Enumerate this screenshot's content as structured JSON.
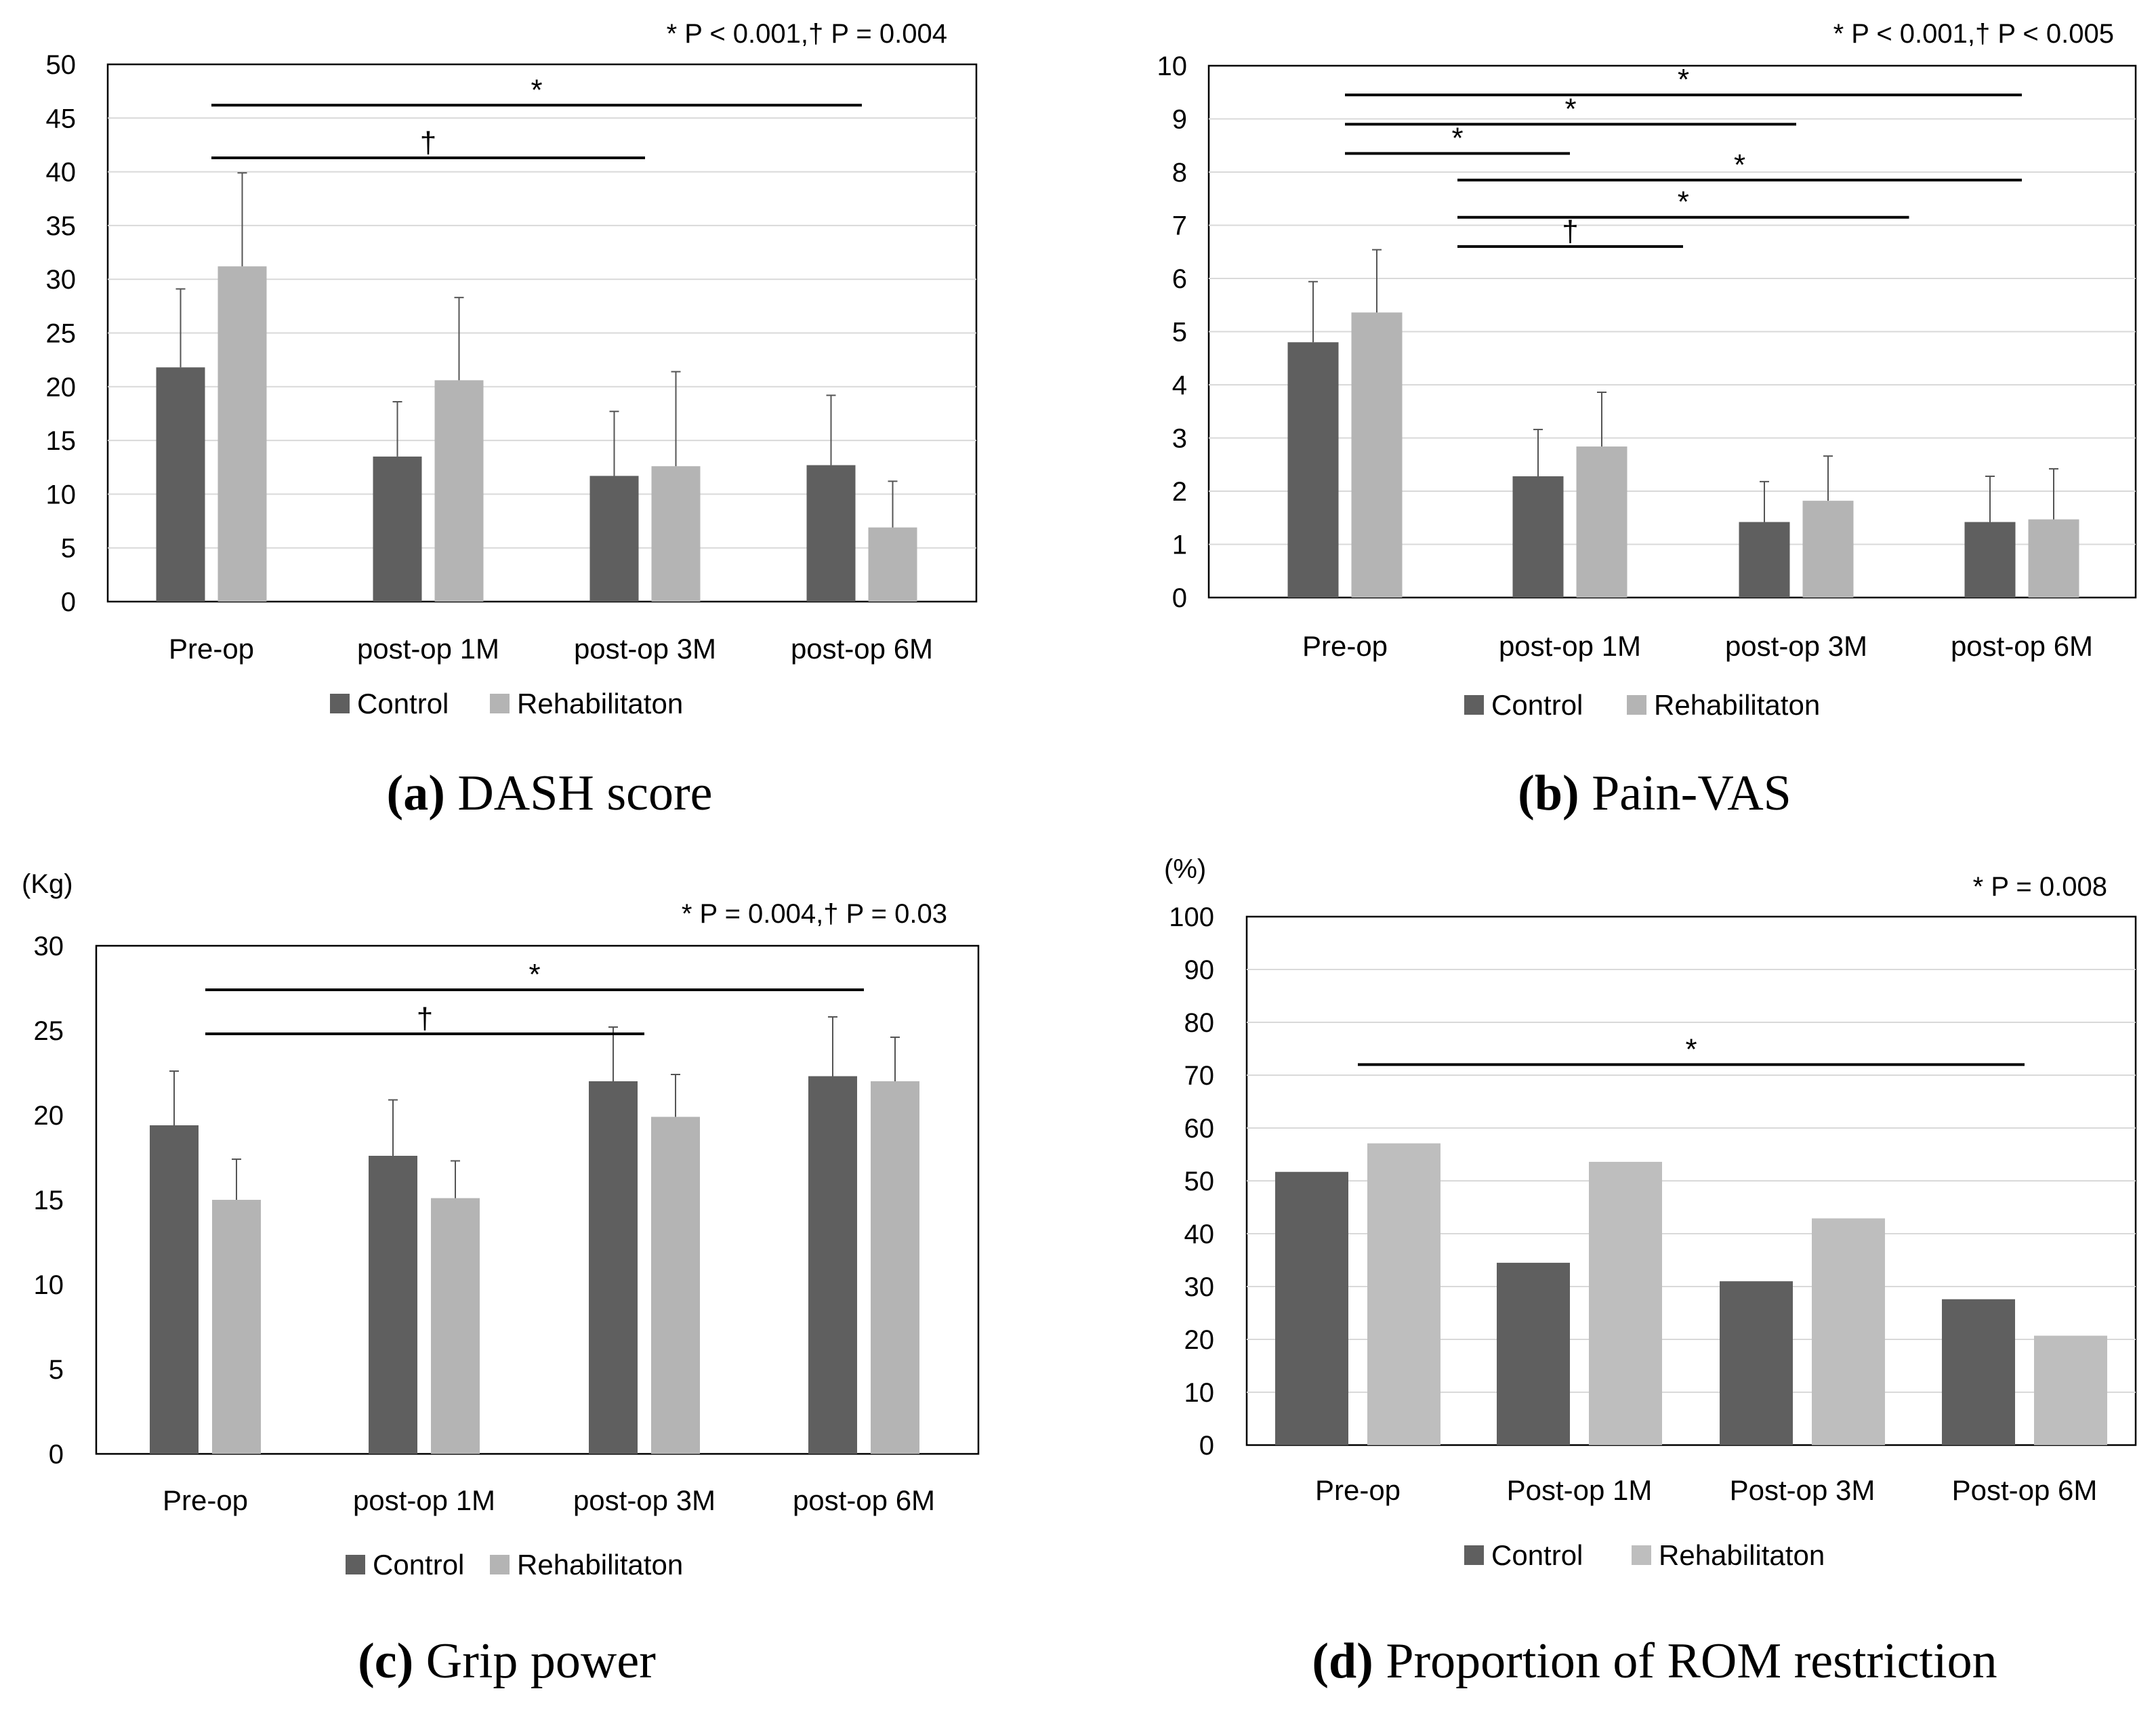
{
  "legend_labels": [
    "Control",
    "Rehabilitaton"
  ],
  "colors": {
    "control": "#5f5f5f",
    "rehab": "#b4b4b4",
    "rehab_d": "#bebebe",
    "grid": "#d9d9d9",
    "axis": "#000000"
  },
  "chart_data": [
    {
      "panel": "a",
      "type": "bar",
      "caption_letter": "(a)",
      "caption_text": " DASH score",
      "pvalue_note": "* P < 0.001,† P = 0.004",
      "ylabel": "",
      "categories": [
        "Pre-op",
        "post-op 1M",
        "post-op 3M",
        "post-op 6M"
      ],
      "ylim": [
        0,
        50
      ],
      "yticks": [
        0,
        5,
        10,
        15,
        20,
        25,
        30,
        35,
        40,
        45,
        50
      ],
      "grid": true,
      "legend": "bottom",
      "series": [
        {
          "name": "Control",
          "values": [
            21.8,
            13.5,
            11.7,
            12.7
          ],
          "errors": [
            7.3,
            5.1,
            6.0,
            6.5
          ]
        },
        {
          "name": "Rehabilitaton",
          "values": [
            31.2,
            20.6,
            12.6,
            6.9
          ],
          "errors": [
            8.7,
            7.7,
            8.8,
            4.3
          ]
        }
      ],
      "brackets": [
        {
          "from": 0,
          "to": 3,
          "y": 46.2,
          "symbol": "*"
        },
        {
          "from": 0,
          "to": 2,
          "y": 41.3,
          "symbol": "†"
        }
      ]
    },
    {
      "panel": "b",
      "type": "bar",
      "caption_letter": "(b)",
      "caption_text": " Pain-VAS",
      "pvalue_note": "* P < 0.001,† P < 0.005",
      "ylabel": "",
      "categories": [
        "Pre-op",
        "post-op 1M",
        "post-op 3M",
        "post-op 6M"
      ],
      "ylim": [
        0,
        10
      ],
      "yticks": [
        0,
        1,
        2,
        3,
        4,
        5,
        6,
        7,
        8,
        9,
        10
      ],
      "grid": true,
      "legend": "bottom",
      "series": [
        {
          "name": "Control",
          "values": [
            4.8,
            2.28,
            1.42,
            1.42
          ],
          "errors": [
            1.14,
            0.88,
            0.76,
            0.86
          ]
        },
        {
          "name": "Rehabilitaton",
          "values": [
            5.36,
            2.84,
            1.82,
            1.47
          ],
          "errors": [
            1.18,
            1.02,
            0.84,
            0.95
          ]
        }
      ],
      "brackets": [
        {
          "from": 0,
          "to": 3,
          "y": 9.45,
          "symbol": "*"
        },
        {
          "from": 0,
          "to": 2,
          "y": 8.9,
          "symbol": "*"
        },
        {
          "from": 0,
          "to": 1,
          "y": 8.35,
          "symbol": "*"
        },
        {
          "from": 0.5,
          "to": 3.5,
          "y": 7.85,
          "symbol": "*"
        },
        {
          "from": 0.5,
          "to": 2.5,
          "y": 7.15,
          "symbol": "*"
        },
        {
          "from": 0.5,
          "to": 1.5,
          "y": 6.6,
          "symbol": "†"
        }
      ]
    },
    {
      "panel": "c",
      "type": "bar",
      "caption_letter": "(c)",
      "caption_text": " Grip power",
      "pvalue_note": "* P = 0.004,† P = 0.03",
      "ylabel": "(Kg)",
      "categories": [
        "Pre-op",
        "post-op 1M",
        "post-op 3M",
        "post-op 6M"
      ],
      "ylim": [
        0,
        30
      ],
      "yticks": [
        0,
        5,
        10,
        15,
        20,
        25,
        30
      ],
      "grid": false,
      "legend": "bottom",
      "series": [
        {
          "name": "Control",
          "values": [
            19.4,
            17.6,
            22.0,
            22.3
          ],
          "errors": [
            3.2,
            3.3,
            3.2,
            3.5
          ]
        },
        {
          "name": "Rehabilitaton",
          "values": [
            15.0,
            15.1,
            19.9,
            22.0
          ],
          "errors": [
            2.4,
            2.2,
            2.5,
            2.6
          ]
        }
      ],
      "brackets": [
        {
          "from": 0,
          "to": 3,
          "y": 27.4,
          "symbol": "*"
        },
        {
          "from": 0,
          "to": 2,
          "y": 24.8,
          "symbol": "†"
        }
      ]
    },
    {
      "panel": "d",
      "type": "bar",
      "caption_letter": "(d)",
      "caption_text": " Proportion of ROM restriction",
      "pvalue_note": "* P = 0.008",
      "ylabel": "(%)",
      "categories": [
        "Pre-op",
        "Post-op 1M",
        "Post-op 3M",
        "Post-op 6M"
      ],
      "ylim": [
        0,
        100
      ],
      "yticks": [
        0,
        10,
        20,
        30,
        40,
        50,
        60,
        70,
        80,
        90,
        100
      ],
      "grid": true,
      "legend": "bottom",
      "series": [
        {
          "name": "Control",
          "values": [
            51.7,
            34.5,
            31.0,
            27.6
          ],
          "errors": []
        },
        {
          "name": "Rehabilitaton",
          "values": [
            57.1,
            53.6,
            42.9,
            20.7
          ],
          "errors": []
        }
      ],
      "brackets": [
        {
          "from": 0,
          "to": 3,
          "y": 72,
          "symbol": "*"
        }
      ]
    }
  ]
}
